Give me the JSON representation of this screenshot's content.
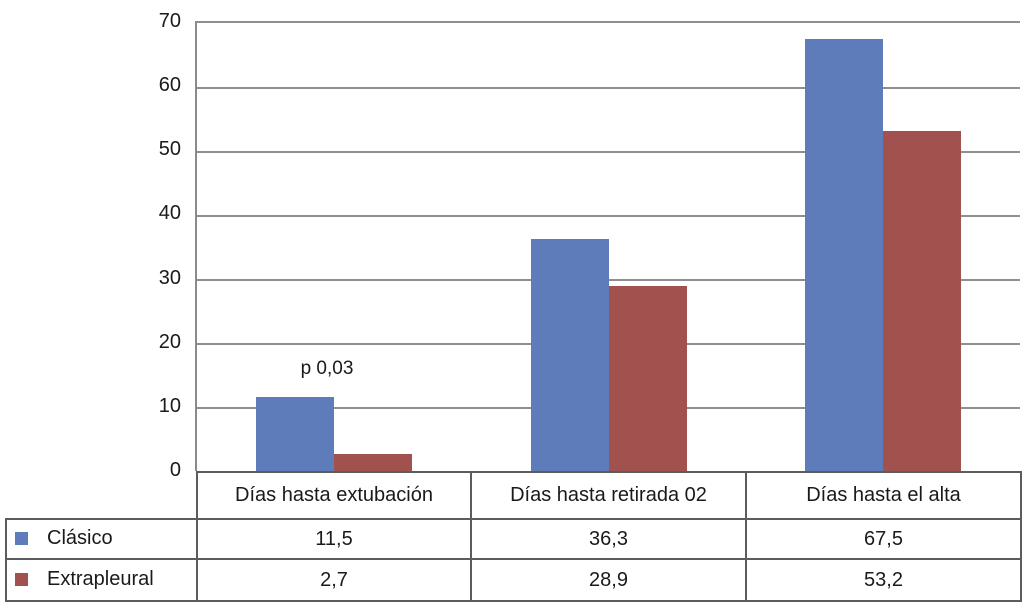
{
  "chart_data": {
    "type": "bar",
    "title": "",
    "xlabel": "",
    "ylabel": "",
    "categories": [
      "Días hasta extubación",
      "Días hasta retirada 02",
      "Días hasta el alta"
    ],
    "series": [
      {
        "name": "Clásico",
        "color": "#5e7cb9",
        "values": [
          11.5,
          36.3,
          67.5
        ],
        "labels": [
          "11,5",
          "36,3",
          "67,5"
        ]
      },
      {
        "name": "Extrapleural",
        "color": "#a2524e",
        "values": [
          2.7,
          28.9,
          53.2
        ],
        "labels": [
          "2,7",
          "28,9",
          "53,2"
        ]
      }
    ],
    "annotation": {
      "text": "p 0,03",
      "category_index": 0
    },
    "ylim": [
      0,
      70
    ],
    "yticks": [
      70,
      60,
      50,
      40,
      30,
      20,
      10,
      0
    ],
    "grid": true,
    "legend_position": "table-rows-left",
    "colors": {
      "axis": "#8a8a8a",
      "grid": "#8f8f8f",
      "table_border": "#5c5c5c",
      "text": "#1a1a1a",
      "background": "#ffffff"
    }
  }
}
